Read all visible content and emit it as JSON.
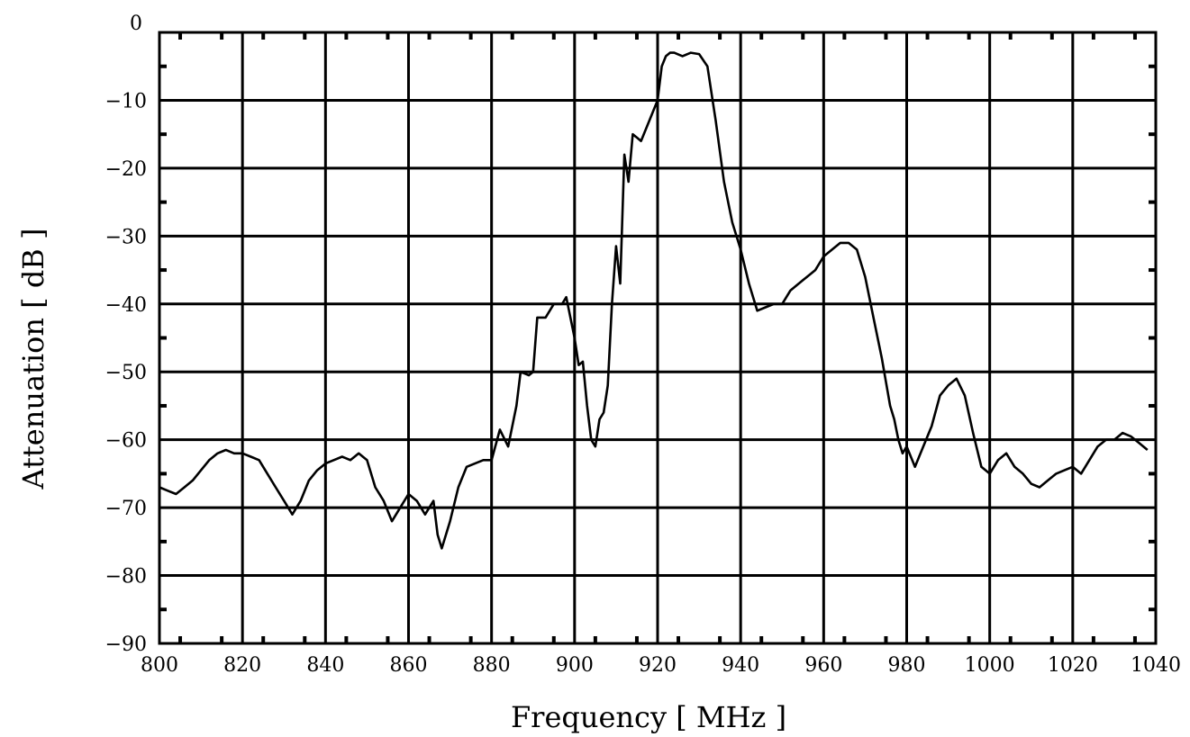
{
  "chart_data": {
    "type": "line",
    "title": "",
    "xlabel": "Frequency [ MHz ]",
    "ylabel": "Attenuation [ dB ]",
    "xlim": [
      800,
      1040
    ],
    "ylim": [
      -90,
      0
    ],
    "x_ticks": [
      800,
      820,
      840,
      860,
      880,
      900,
      920,
      940,
      960,
      980,
      1000,
      1020,
      1040
    ],
    "x_tick_labels": [
      "800",
      "820",
      "840",
      "860",
      "880",
      "900",
      "920",
      "940",
      "960",
      "980",
      "1000",
      "1020",
      "1040"
    ],
    "y_ticks": [
      0,
      -10,
      -20,
      -30,
      -40,
      -50,
      -60,
      -70,
      -80,
      -90
    ],
    "y_tick_labels": [
      "0",
      "−10",
      "−20",
      "−30",
      "−40",
      "−50",
      "−60",
      "−70",
      "−80",
      "−90"
    ],
    "grid": true,
    "line_color": "#000000",
    "series": [
      {
        "x": [
          800,
          802,
          804,
          806,
          808,
          810,
          812,
          814,
          816,
          818,
          820,
          822,
          824,
          826,
          828,
          830,
          832,
          834,
          836,
          838,
          840,
          842,
          844,
          846,
          848,
          850,
          852,
          854,
          856,
          858,
          860,
          862,
          864,
          866,
          867,
          868,
          870,
          872,
          874,
          876,
          878,
          880,
          882,
          884,
          886,
          887,
          889,
          890,
          891,
          893,
          895,
          897,
          898,
          900,
          901,
          902,
          903,
          904,
          905,
          906,
          907,
          908,
          909,
          910,
          911,
          912,
          913,
          914,
          915,
          916,
          918,
          920,
          921,
          922,
          923,
          924,
          926,
          928,
          930,
          932,
          934,
          936,
          938,
          940,
          942,
          944,
          946,
          948,
          950,
          952,
          954,
          956,
          958,
          960,
          962,
          964,
          966,
          968,
          970,
          972,
          974,
          976,
          977,
          978,
          979,
          980,
          982,
          984,
          986,
          988,
          990,
          992,
          994,
          996,
          998,
          1000,
          1002,
          1004,
          1006,
          1008,
          1010,
          1012,
          1014,
          1016,
          1018,
          1020,
          1022,
          1024,
          1026,
          1028,
          1030,
          1032,
          1034,
          1036,
          1038
        ],
        "y": [
          -67,
          -67.5,
          -68,
          -67,
          -66,
          -64.5,
          -63,
          -62,
          -61.5,
          -62,
          -62,
          -62.5,
          -63,
          -65,
          -67,
          -69,
          -71,
          -69,
          -66,
          -64.5,
          -63.5,
          -63,
          -62.5,
          -63,
          -62,
          -63,
          -67,
          -69,
          -72,
          -70,
          -68,
          -69,
          -71,
          -69,
          -74,
          -76,
          -72,
          -67,
          -64,
          -63.5,
          -63,
          -63,
          -58.5,
          -61,
          -55,
          -50,
          -50.5,
          -50,
          -42,
          -42,
          -40,
          -40,
          -39,
          -45,
          -49,
          -48.5,
          -55,
          -60,
          -61,
          -57,
          -56,
          -52,
          -40,
          -31.5,
          -37,
          -18,
          -22,
          -15,
          -15.5,
          -16,
          -13,
          -10,
          -5,
          -3.5,
          -3,
          -3,
          -3.5,
          -3,
          -3.2,
          -5,
          -13,
          -22,
          -28,
          -32,
          -37,
          -41,
          -40.5,
          -40,
          -40,
          -38,
          -37,
          -36,
          -35,
          -33,
          -32,
          -31,
          -31,
          -32,
          -36,
          -42,
          -48,
          -55,
          -57,
          -60,
          -62,
          -61,
          -64,
          -61,
          -58,
          -53.5,
          -52,
          -51,
          -53.5,
          -59,
          -64,
          -65,
          -63,
          -62,
          -64,
          -65,
          -66.5,
          -67,
          -66,
          -65,
          -64.5,
          -64,
          -65,
          -63,
          -61,
          -60,
          -60,
          -59,
          -59.5,
          -60.5,
          -61.5
        ]
      }
    ]
  }
}
